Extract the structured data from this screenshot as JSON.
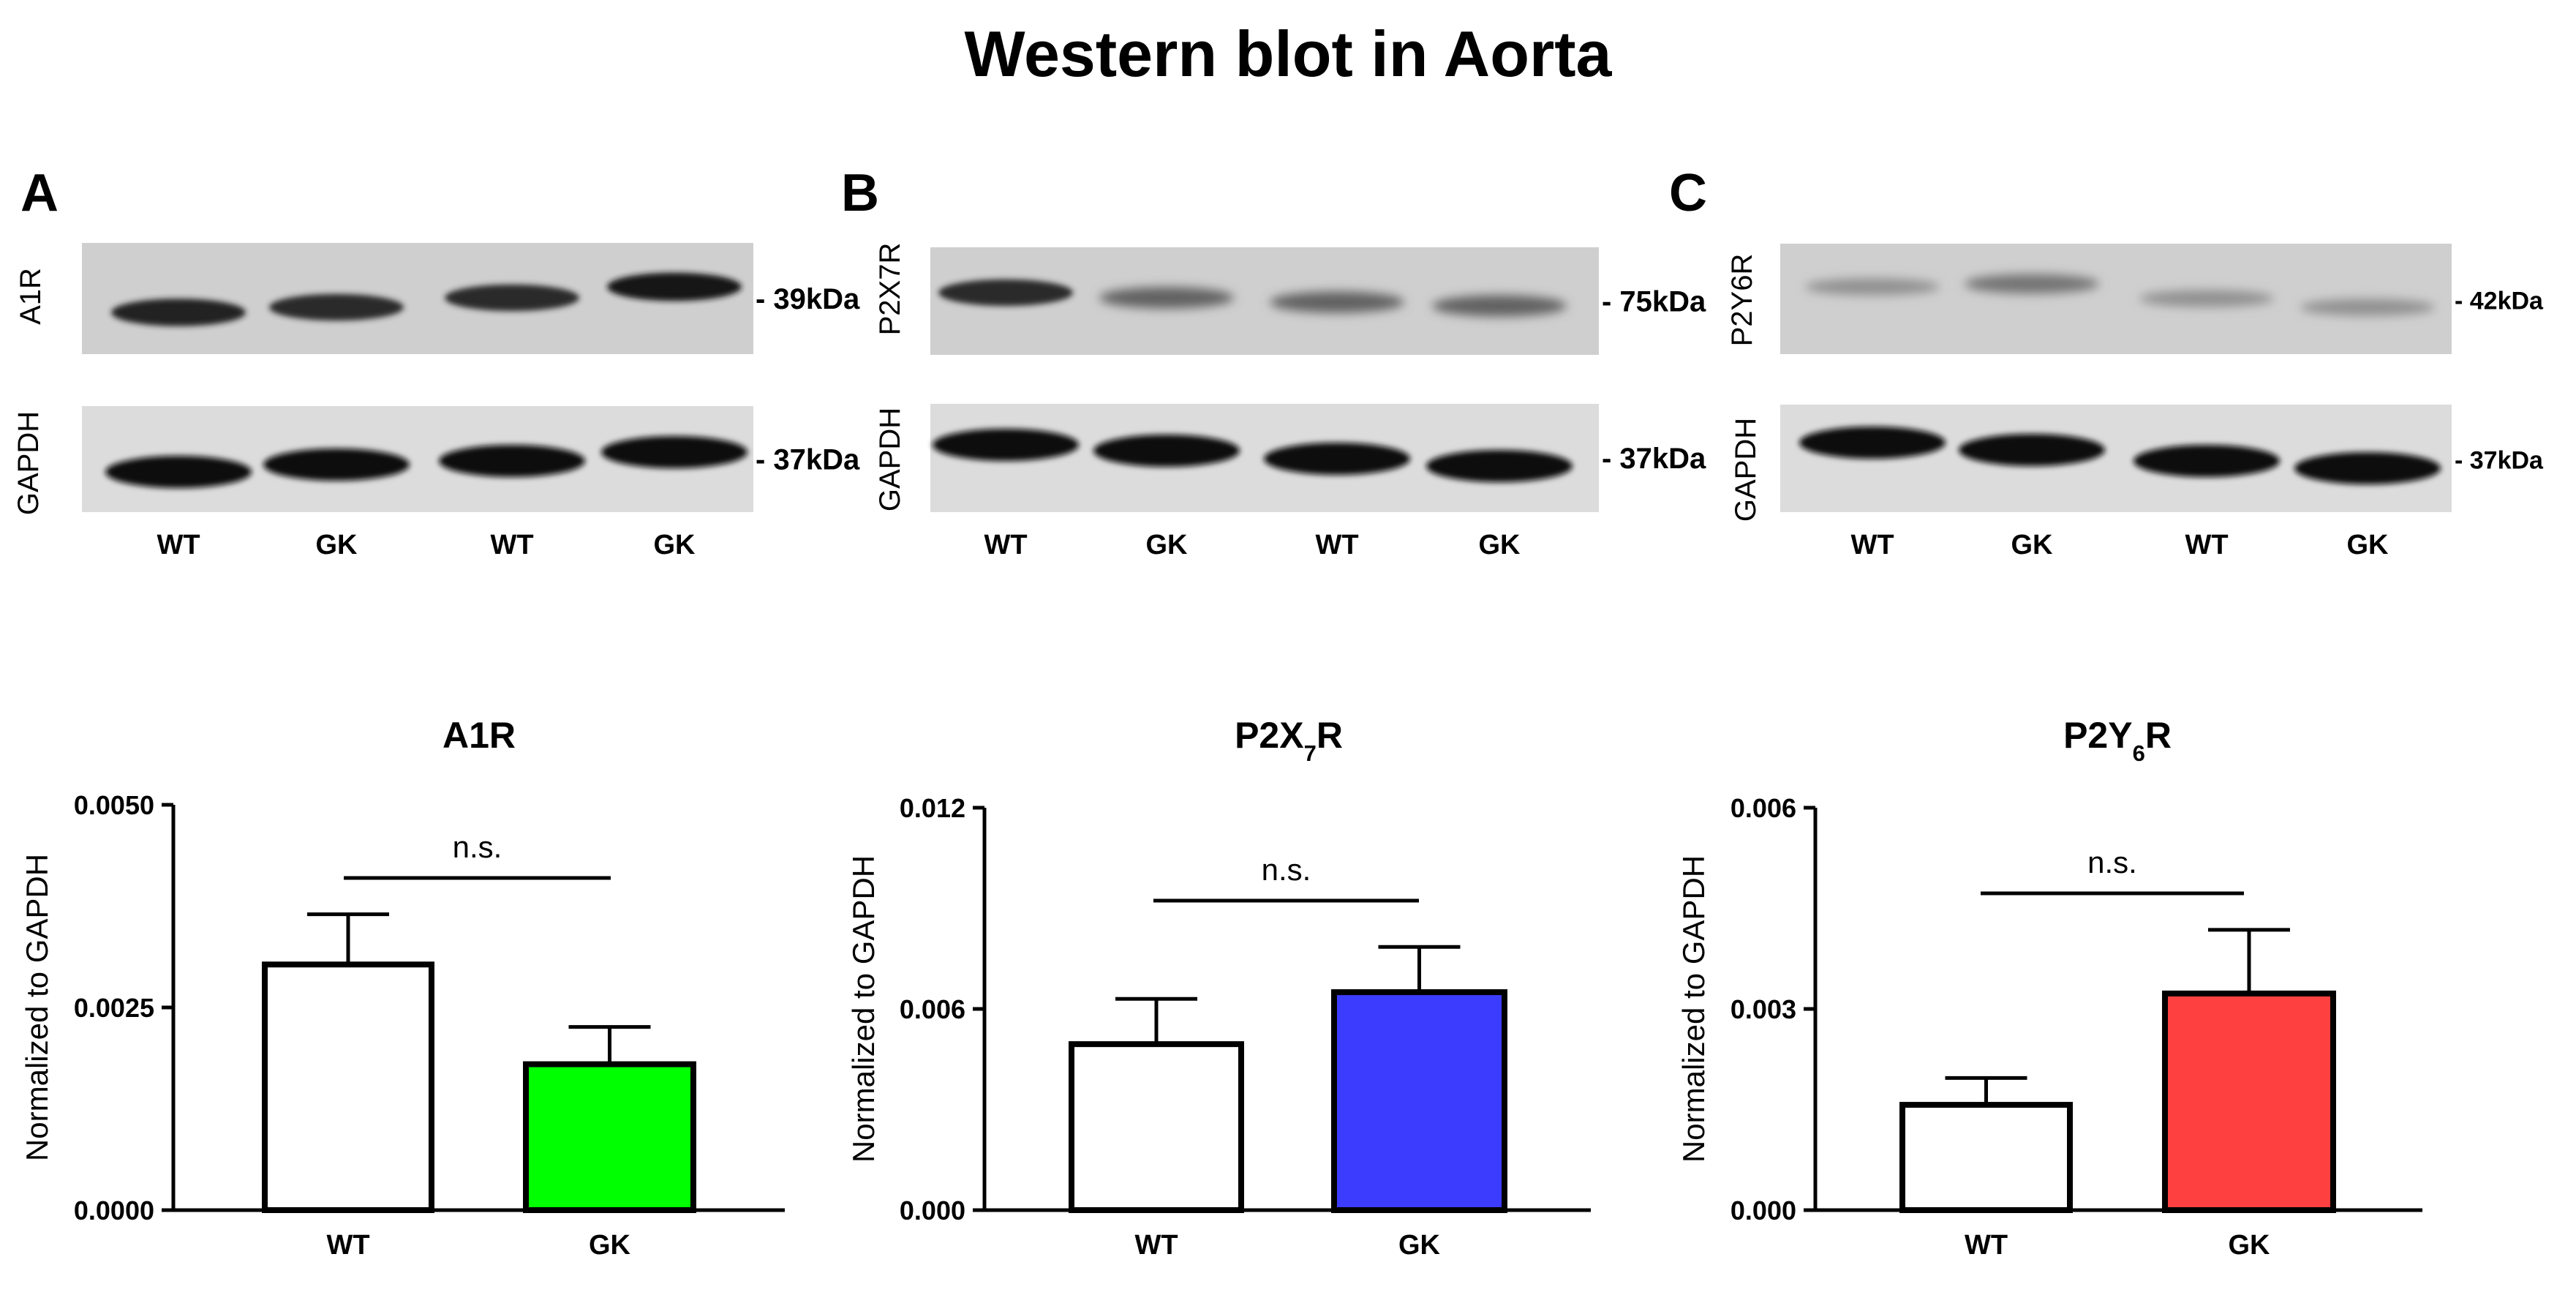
{
  "figure": {
    "title": "Western blot in Aorta"
  },
  "blots": [
    {
      "panel_letter": "A",
      "target_label": "A1R",
      "target_label_sub": "",
      "target_label_tail": "",
      "target_kda": "- 39kDa",
      "gapdh_label": "GAPDH",
      "gapdh_kda": "- 37kDa",
      "lanes": [
        "WT",
        "GK",
        "WT",
        "GK"
      ],
      "target_band_intensity": [
        0.9,
        0.85,
        0.85,
        0.95
      ],
      "gapdh_band_intensity": [
        1.0,
        1.0,
        1.0,
        1.0
      ]
    },
    {
      "panel_letter": "B",
      "target_label": "P2X7R",
      "target_label_sub": "",
      "target_label_tail": "",
      "target_kda": "- 75kDa",
      "gapdh_label": "GAPDH",
      "gapdh_kda": "- 37kDa",
      "lanes": [
        "WT",
        "GK",
        "WT",
        "GK"
      ],
      "target_band_intensity": [
        0.85,
        0.55,
        0.55,
        0.55
      ],
      "gapdh_band_intensity": [
        1.0,
        1.0,
        1.0,
        1.0
      ]
    },
    {
      "panel_letter": "C",
      "target_label": "P2Y6R",
      "target_label_sub": "",
      "target_label_tail": "",
      "target_kda": "- 42kDa",
      "gapdh_label": "GAPDH",
      "gapdh_kda": "- 37kDa",
      "lanes": [
        "WT",
        "GK",
        "WT",
        "GK"
      ],
      "target_band_intensity": [
        0.3,
        0.45,
        0.3,
        0.3
      ],
      "gapdh_band_intensity": [
        1.0,
        1.0,
        1.0,
        1.0
      ]
    }
  ],
  "chart_data": [
    {
      "type": "bar",
      "title": "A1R",
      "title_sub": "",
      "title_tail": "",
      "categories": [
        "WT",
        "GK"
      ],
      "values": [
        0.00303,
        0.0018
      ],
      "errors": [
        0.00062,
        0.00046
      ],
      "colors": [
        "#ffffff",
        "#00ff00"
      ],
      "ylabel": "Normalized to GAPDH",
      "ylim": [
        0,
        0.005
      ],
      "yticks": [
        "0.0000",
        "0.0025",
        "0.0050"
      ],
      "significance": "n.s.",
      "grid": false
    },
    {
      "type": "bar",
      "title": "P2X",
      "title_sub": "7",
      "title_tail": "R",
      "categories": [
        "WT",
        "GK"
      ],
      "values": [
        0.00495,
        0.0065
      ],
      "errors": [
        0.00135,
        0.00135
      ],
      "colors": [
        "#ffffff",
        "#3c3cff"
      ],
      "ylabel": "Normalized to GAPDH",
      "ylim": [
        0,
        0.012
      ],
      "yticks": [
        "0.000",
        "0.006",
        "0.012"
      ],
      "significance": "n.s.",
      "grid": false
    },
    {
      "type": "bar",
      "title": "P2Y",
      "title_sub": "6",
      "title_tail": "R",
      "categories": [
        "WT",
        "GK"
      ],
      "values": [
        0.00157,
        0.00323
      ],
      "errors": [
        0.0004,
        0.00095
      ],
      "colors": [
        "#ffffff",
        "#ff4040"
      ],
      "ylabel": "Normalized to GAPDH",
      "ylim": [
        0,
        0.006
      ],
      "yticks": [
        "0.000",
        "0.003",
        "0.006"
      ],
      "significance": "n.s.",
      "grid": false
    }
  ]
}
